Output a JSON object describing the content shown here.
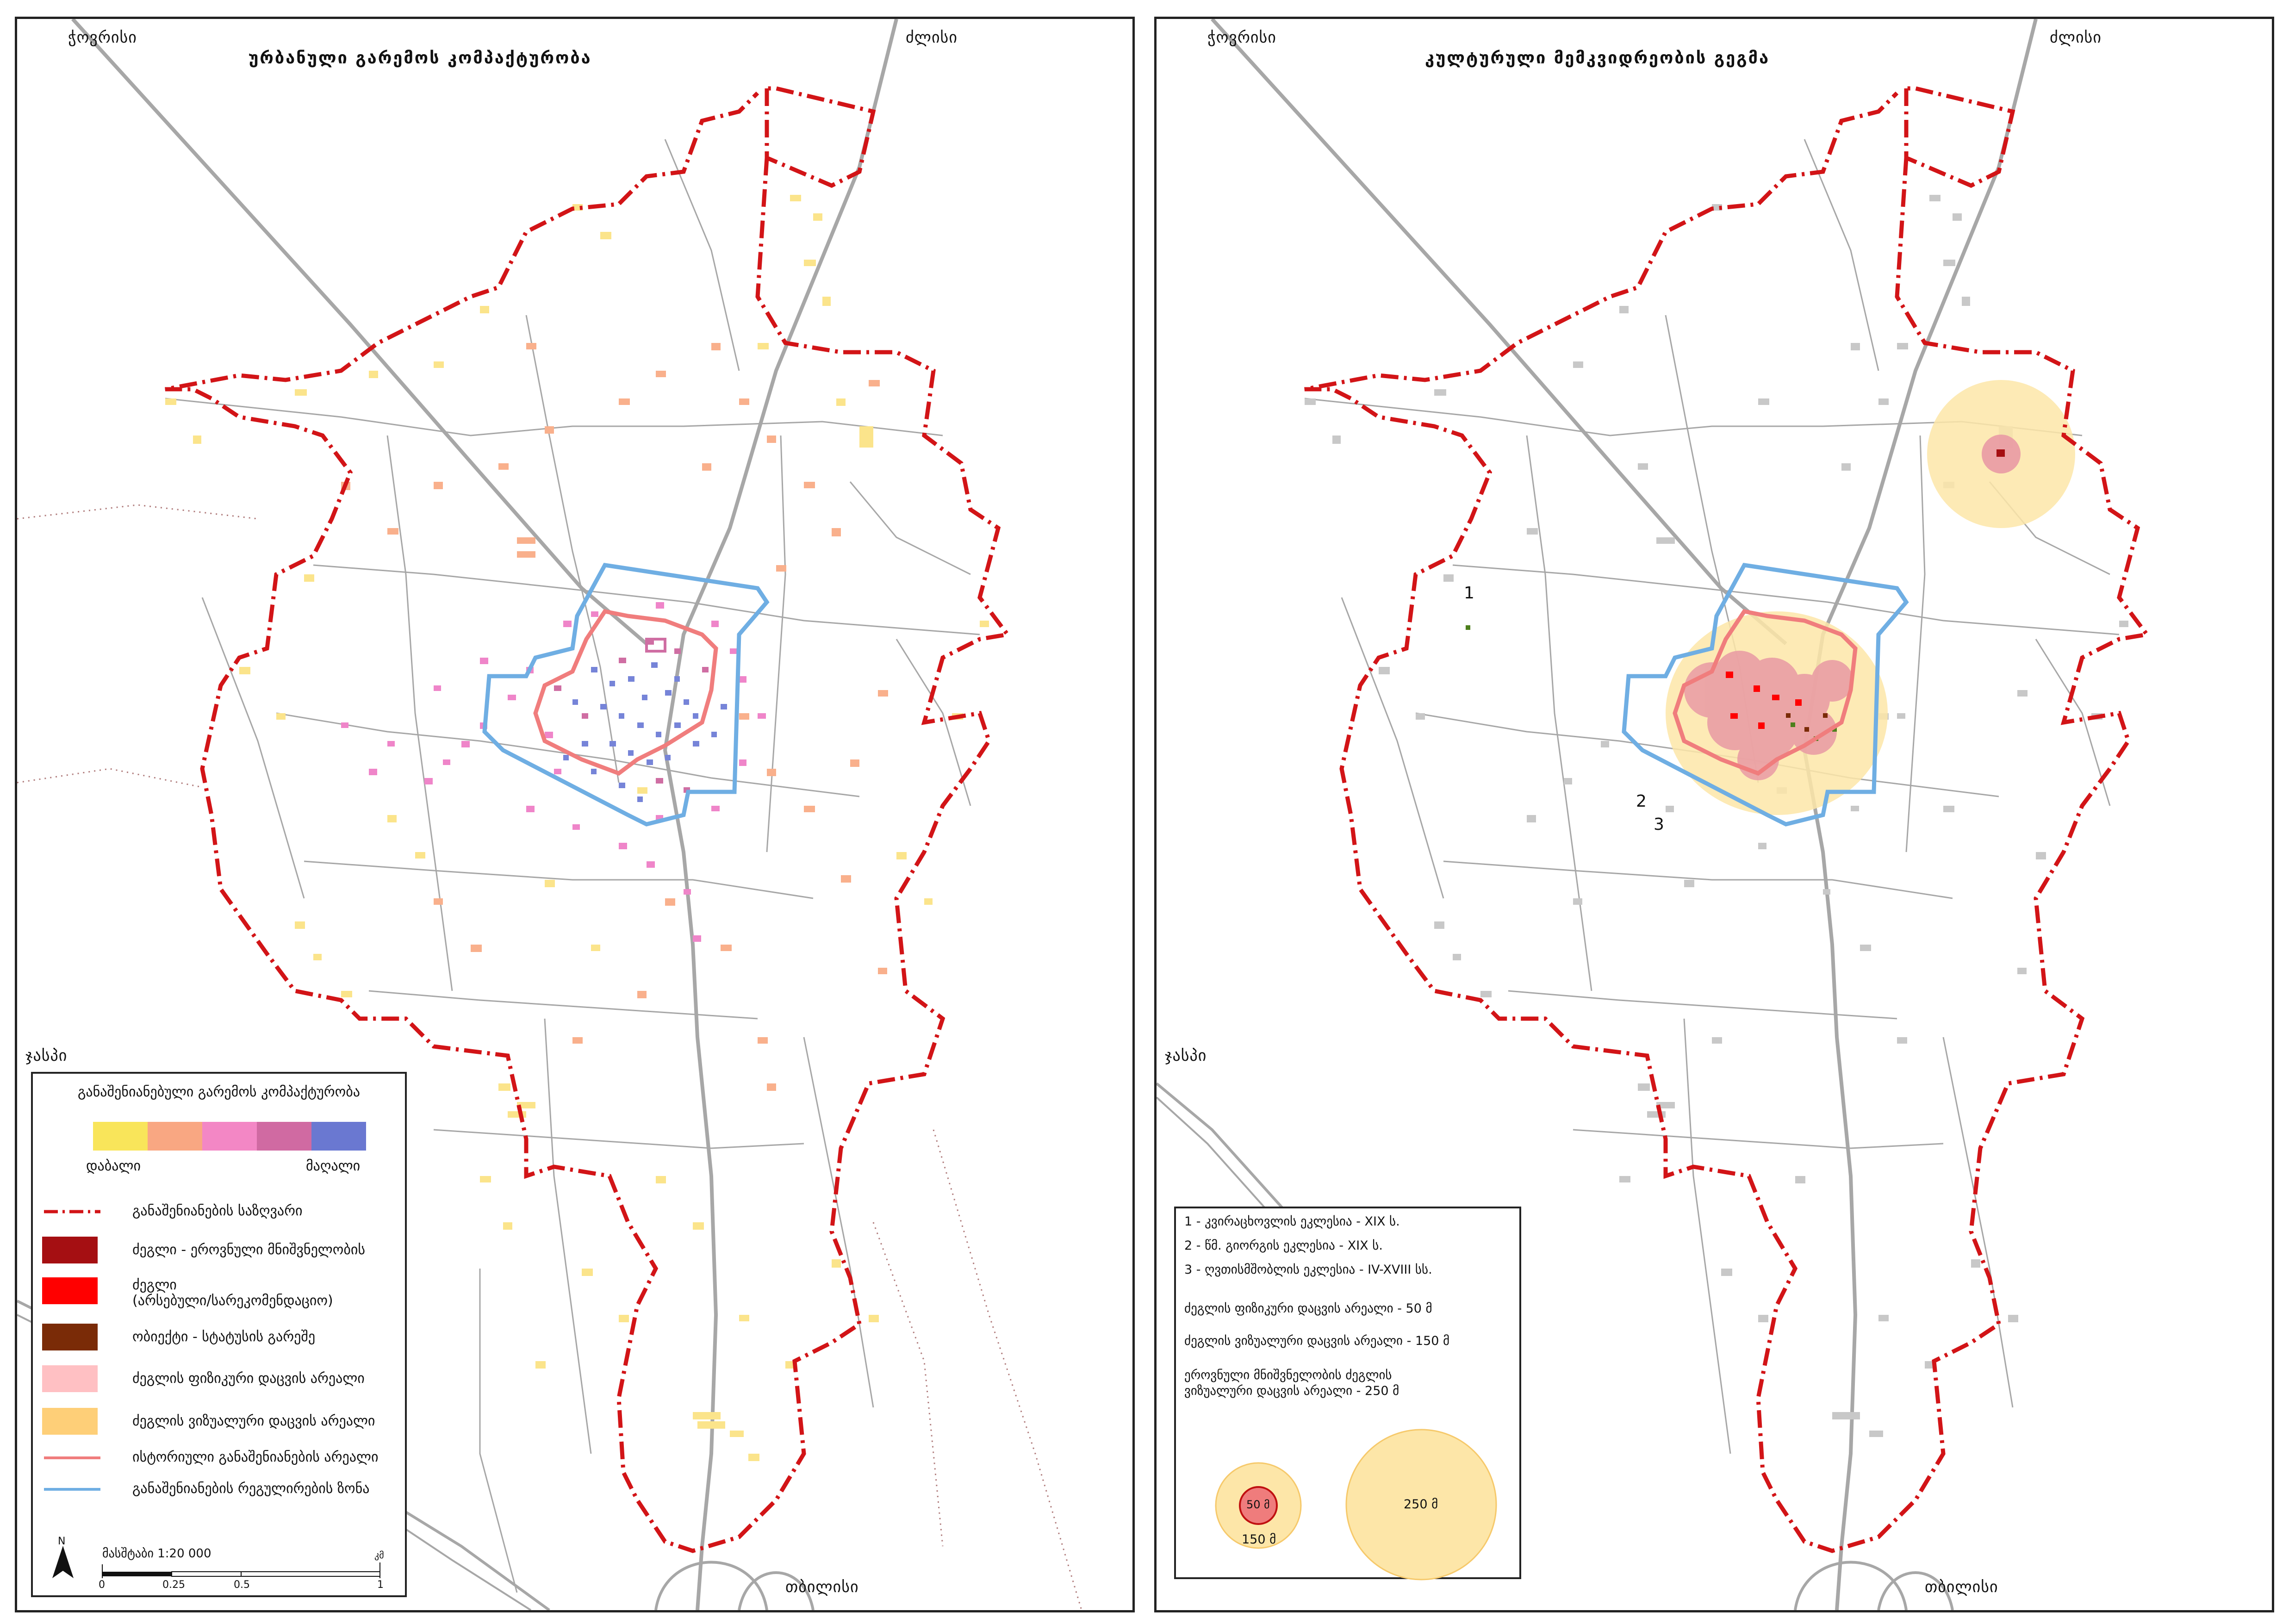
{
  "left_map": {
    "title": "ურბანული გარემოს კომპაქტურობა",
    "places": {
      "nw": "ჭოვრისი",
      "ne": "ძლისი",
      "w": "ჯასპი",
      "s": "თბილისი"
    },
    "legend": {
      "title": "განაშენიანებული გარემოს კომპაქტურობა",
      "gradient_colors": [
        "#f9e55a",
        "#f9a782",
        "#f387c5",
        "#d06aa2",
        "#6a78d1"
      ],
      "low_label": "დაბალი",
      "high_label": "მაღალი",
      "items": [
        {
          "label": "განაშენიანების საზღვარი",
          "symbol": "dashdot-line",
          "color": "#d21417"
        },
        {
          "label": "ძეგლი - ეროვნული მნიშვნელობის",
          "symbol": "fill",
          "color": "#a50f12"
        },
        {
          "label": "ძეგლი\n(არსებული/სარეკომენდაციო)",
          "symbol": "fill",
          "color": "#ff0000"
        },
        {
          "label": "ობიექტი - სტატუსის გარეშე",
          "symbol": "fill",
          "color": "#7a2b07"
        },
        {
          "label": "ძეგლის ფიზიკური დაცვის არეალი",
          "symbol": "fill",
          "color": "#ffc0c3"
        },
        {
          "label": "ძეგლის ვიზუალური დაცვის არეალი",
          "symbol": "fill",
          "color": "#fecf78"
        },
        {
          "label": "ისტორიული განაშენიანების არეალი",
          "symbol": "line",
          "color": "#f07d7d"
        },
        {
          "label": "განაშენიანების რეგულირების ზონა",
          "symbol": "line",
          "color": "#6faee3"
        }
      ],
      "scale": {
        "north": "N",
        "label": "მასშტაბი 1:20 000",
        "unit": "კმ",
        "ticks": [
          "0",
          "0.25",
          "0.5",
          "1"
        ]
      }
    }
  },
  "right_map": {
    "title": "კულტურული მემკვიდრეობის გეგმა",
    "places": {
      "nw": "ჭოვრისი",
      "ne": "ძლისი",
      "w": "ჯასპი",
      "s": "თბილისი"
    },
    "markers": [
      "1",
      "2",
      "3"
    ],
    "legend": {
      "lines": [
        "1 - კვირაცხოვლის ეკლესია - XIX ს.",
        "2 - წმ. გიორგის ეკლესია - XIX ს.",
        "3 - ღვთისმშობლის ეკლესია - IV-XVIII სს.",
        "ძეგლის ფიზიკური დაცვის არეალი - 50 მ",
        "ძეგლის ვიზუალური დაცვის არეალი - 150 მ",
        "ეროვნული მნიშვნელობის ძეგლის\nვიზუალური დაცვის არეალი - 250 მ"
      ],
      "circle_labels": {
        "c50": "50 მ",
        "c150": "150 მ",
        "c250": "250 მ"
      }
    }
  },
  "colors": {
    "boundary": "#d21417",
    "regulation_zone": "#6faee3",
    "historic_area": "#f07d7d",
    "road": "#a7a7a7",
    "visual_zone": "#fde6a8",
    "physical_zone": "#e99aa4"
  }
}
